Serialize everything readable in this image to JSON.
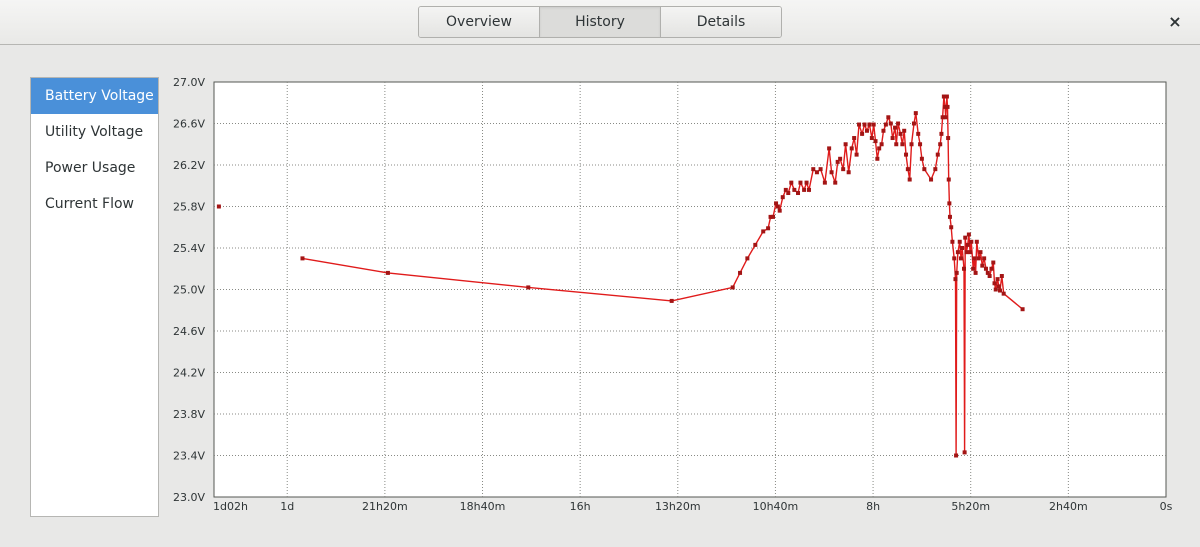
{
  "header": {
    "tabs": [
      {
        "label": "Overview",
        "active": false
      },
      {
        "label": "History",
        "active": true
      },
      {
        "label": "Details",
        "active": false
      }
    ],
    "close_icon": "close-icon",
    "close_glyph": "×"
  },
  "sidebar": {
    "items": [
      {
        "label": "Battery Voltage",
        "active": true
      },
      {
        "label": "Utility Voltage",
        "active": false
      },
      {
        "label": "Power Usage",
        "active": false
      },
      {
        "label": "Current Flow",
        "active": false
      }
    ]
  },
  "colors": {
    "accent": "#4a90d9",
    "series": "#e01b1b",
    "marker": "#a31515"
  },
  "chart_data": {
    "type": "line",
    "title": "",
    "xlabel": "",
    "ylabel": "",
    "x_unit": "minutes ago",
    "xlim": [
      1560,
      0
    ],
    "ylim": [
      23.0,
      27.0
    ],
    "grid": true,
    "x_ticks": [
      {
        "label": "1d02h",
        "value": 1560
      },
      {
        "label": "1d",
        "value": 1440
      },
      {
        "label": "21h20m",
        "value": 1280
      },
      {
        "label": "18h40m",
        "value": 1120
      },
      {
        "label": "16h",
        "value": 960
      },
      {
        "label": "13h20m",
        "value": 800
      },
      {
        "label": "10h40m",
        "value": 640
      },
      {
        "label": "8h",
        "value": 480
      },
      {
        "label": "5h20m",
        "value": 320
      },
      {
        "label": "2h40m",
        "value": 160
      },
      {
        "label": "0s",
        "value": 0
      }
    ],
    "y_ticks": [
      {
        "label": "27.0V",
        "value": 27.0
      },
      {
        "label": "26.6V",
        "value": 26.6
      },
      {
        "label": "26.2V",
        "value": 26.2
      },
      {
        "label": "25.8V",
        "value": 25.8
      },
      {
        "label": "25.4V",
        "value": 25.4
      },
      {
        "label": "25.0V",
        "value": 25.0
      },
      {
        "label": "24.6V",
        "value": 24.6
      },
      {
        "label": "24.2V",
        "value": 24.2
      },
      {
        "label": "23.8V",
        "value": 23.8
      },
      {
        "label": "23.4V",
        "value": 23.4
      },
      {
        "label": "23.0V",
        "value": 23.0
      }
    ],
    "isolated_points": [
      {
        "x": 1552,
        "y": 25.8
      }
    ],
    "series": [
      {
        "points": [
          [
            1415,
            25.3
          ],
          [
            1275,
            25.16
          ],
          [
            1045,
            25.02
          ],
          [
            810,
            24.89
          ],
          [
            710,
            25.02
          ],
          [
            698,
            25.16
          ],
          [
            686,
            25.3
          ],
          [
            673,
            25.43
          ],
          [
            660,
            25.56
          ],
          [
            652,
            25.59
          ],
          [
            648,
            25.7
          ],
          [
            644,
            25.7
          ],
          [
            639,
            25.83
          ],
          [
            636,
            25.8
          ],
          [
            633,
            25.76
          ],
          [
            628,
            25.89
          ],
          [
            623,
            25.96
          ],
          [
            619,
            25.93
          ],
          [
            614,
            26.03
          ],
          [
            609,
            25.96
          ],
          [
            603,
            25.93
          ],
          [
            599,
            26.03
          ],
          [
            593,
            25.96
          ],
          [
            589,
            26.03
          ],
          [
            585,
            25.96
          ],
          [
            578,
            26.16
          ],
          [
            572,
            26.13
          ],
          [
            566,
            26.16
          ],
          [
            559,
            26.03
          ],
          [
            552,
            26.36
          ],
          [
            548,
            26.13
          ],
          [
            542,
            26.03
          ],
          [
            538,
            26.23
          ],
          [
            534,
            26.26
          ],
          [
            529,
            26.16
          ],
          [
            525,
            26.4
          ],
          [
            520,
            26.13
          ],
          [
            515,
            26.36
          ],
          [
            511,
            26.46
          ],
          [
            507,
            26.3
          ],
          [
            503,
            26.59
          ],
          [
            498,
            26.5
          ],
          [
            494,
            26.59
          ],
          [
            490,
            26.53
          ],
          [
            486,
            26.59
          ],
          [
            482,
            26.46
          ],
          [
            479,
            26.59
          ],
          [
            476,
            26.43
          ],
          [
            473,
            26.26
          ],
          [
            470,
            26.36
          ],
          [
            466,
            26.4
          ],
          [
            463,
            26.53
          ],
          [
            459,
            26.59
          ],
          [
            455,
            26.66
          ],
          [
            451,
            26.6
          ],
          [
            448,
            26.46
          ],
          [
            444,
            26.56
          ],
          [
            442,
            26.4
          ],
          [
            439,
            26.6
          ],
          [
            435,
            26.5
          ],
          [
            432,
            26.4
          ],
          [
            429,
            26.53
          ],
          [
            426,
            26.3
          ],
          [
            423,
            26.16
          ],
          [
            420,
            26.06
          ],
          [
            417,
            26.4
          ],
          [
            413,
            26.6
          ],
          [
            410,
            26.7
          ],
          [
            406,
            26.5
          ],
          [
            403,
            26.4
          ],
          [
            400,
            26.26
          ],
          [
            396,
            26.16
          ],
          [
            385,
            26.06
          ],
          [
            378,
            26.16
          ],
          [
            374,
            26.3
          ],
          [
            370,
            26.4
          ],
          [
            368,
            26.5
          ],
          [
            366,
            26.66
          ],
          [
            364,
            26.86
          ],
          [
            362,
            26.76
          ],
          [
            361,
            26.66
          ],
          [
            359,
            26.86
          ],
          [
            358,
            26.76
          ],
          [
            357,
            26.46
          ],
          [
            356,
            26.06
          ],
          [
            355,
            25.83
          ],
          [
            354,
            25.7
          ],
          [
            352,
            25.6
          ],
          [
            350,
            25.46
          ],
          [
            347,
            25.3
          ],
          [
            345,
            25.1
          ],
          [
            344,
            23.4
          ],
          [
            343,
            25.16
          ],
          [
            341,
            25.36
          ],
          [
            338,
            25.46
          ],
          [
            336,
            25.3
          ],
          [
            334,
            25.4
          ],
          [
            331,
            25.2
          ],
          [
            330,
            23.43
          ],
          [
            329,
            25.5
          ],
          [
            327,
            25.36
          ],
          [
            325,
            25.43
          ],
          [
            323,
            25.53
          ],
          [
            321,
            25.36
          ],
          [
            319,
            25.46
          ],
          [
            316,
            25.2
          ],
          [
            314,
            25.3
          ],
          [
            312,
            25.16
          ],
          [
            310,
            25.46
          ],
          [
            307,
            25.3
          ],
          [
            304,
            25.36
          ],
          [
            301,
            25.23
          ],
          [
            298,
            25.3
          ],
          [
            295,
            25.2
          ],
          [
            292,
            25.16
          ],
          [
            289,
            25.13
          ],
          [
            286,
            25.2
          ],
          [
            283,
            25.26
          ],
          [
            281,
            25.06
          ],
          [
            279,
            25.0
          ],
          [
            276,
            25.1
          ],
          [
            274,
            25.03
          ],
          [
            272,
            24.99
          ],
          [
            269,
            25.13
          ],
          [
            266,
            24.96
          ],
          [
            235,
            24.81
          ]
        ]
      }
    ]
  }
}
